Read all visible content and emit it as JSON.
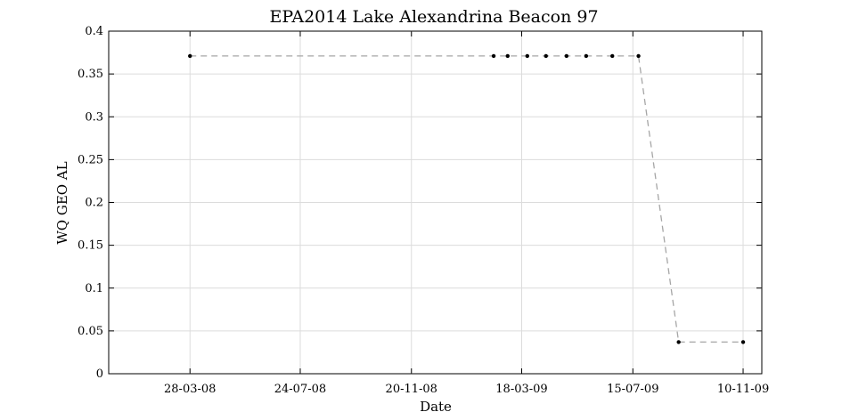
{
  "chart_data": {
    "type": "line",
    "title": "EPA2014 Lake Alexandrina Beacon 97",
    "xlabel": "Date",
    "ylabel": "WQ GEO AL",
    "x_type": "date",
    "xlim": [
      "2008-01-01",
      "2009-11-30"
    ],
    "ylim": [
      0,
      0.4
    ],
    "grid": true,
    "x_ticks": [
      {
        "date": "2008-03-28",
        "label": "28-03-08"
      },
      {
        "date": "2008-07-24",
        "label": "24-07-08"
      },
      {
        "date": "2008-11-20",
        "label": "20-11-08"
      },
      {
        "date": "2009-03-18",
        "label": "18-03-09"
      },
      {
        "date": "2009-07-15",
        "label": "15-07-09"
      },
      {
        "date": "2009-11-10",
        "label": "10-11-09"
      }
    ],
    "y_ticks": [
      {
        "value": 0,
        "label": "0"
      },
      {
        "value": 0.05,
        "label": "0.05"
      },
      {
        "value": 0.1,
        "label": "0.1"
      },
      {
        "value": 0.15,
        "label": "0.15"
      },
      {
        "value": 0.2,
        "label": "0.2"
      },
      {
        "value": 0.25,
        "label": "0.25"
      },
      {
        "value": 0.3,
        "label": "0.3"
      },
      {
        "value": 0.35,
        "label": "0.35"
      },
      {
        "value": 0.4,
        "label": "0.4"
      }
    ],
    "series": [
      {
        "line_color": "#a6a6a6",
        "marker_color": "#000000",
        "points": [
          {
            "x": "2008-03-28",
            "y": 0.371
          },
          {
            "x": "2009-02-16",
            "y": 0.371
          },
          {
            "x": "2009-03-03",
            "y": 0.371
          },
          {
            "x": "2009-03-24",
            "y": 0.371
          },
          {
            "x": "2009-04-13",
            "y": 0.371
          },
          {
            "x": "2009-05-05",
            "y": 0.371
          },
          {
            "x": "2009-05-26",
            "y": 0.371
          },
          {
            "x": "2009-06-23",
            "y": 0.371
          },
          {
            "x": "2009-07-21",
            "y": 0.371
          },
          {
            "x": "2009-09-02",
            "y": 0.037
          },
          {
            "x": "2009-11-10",
            "y": 0.037
          }
        ]
      }
    ]
  }
}
